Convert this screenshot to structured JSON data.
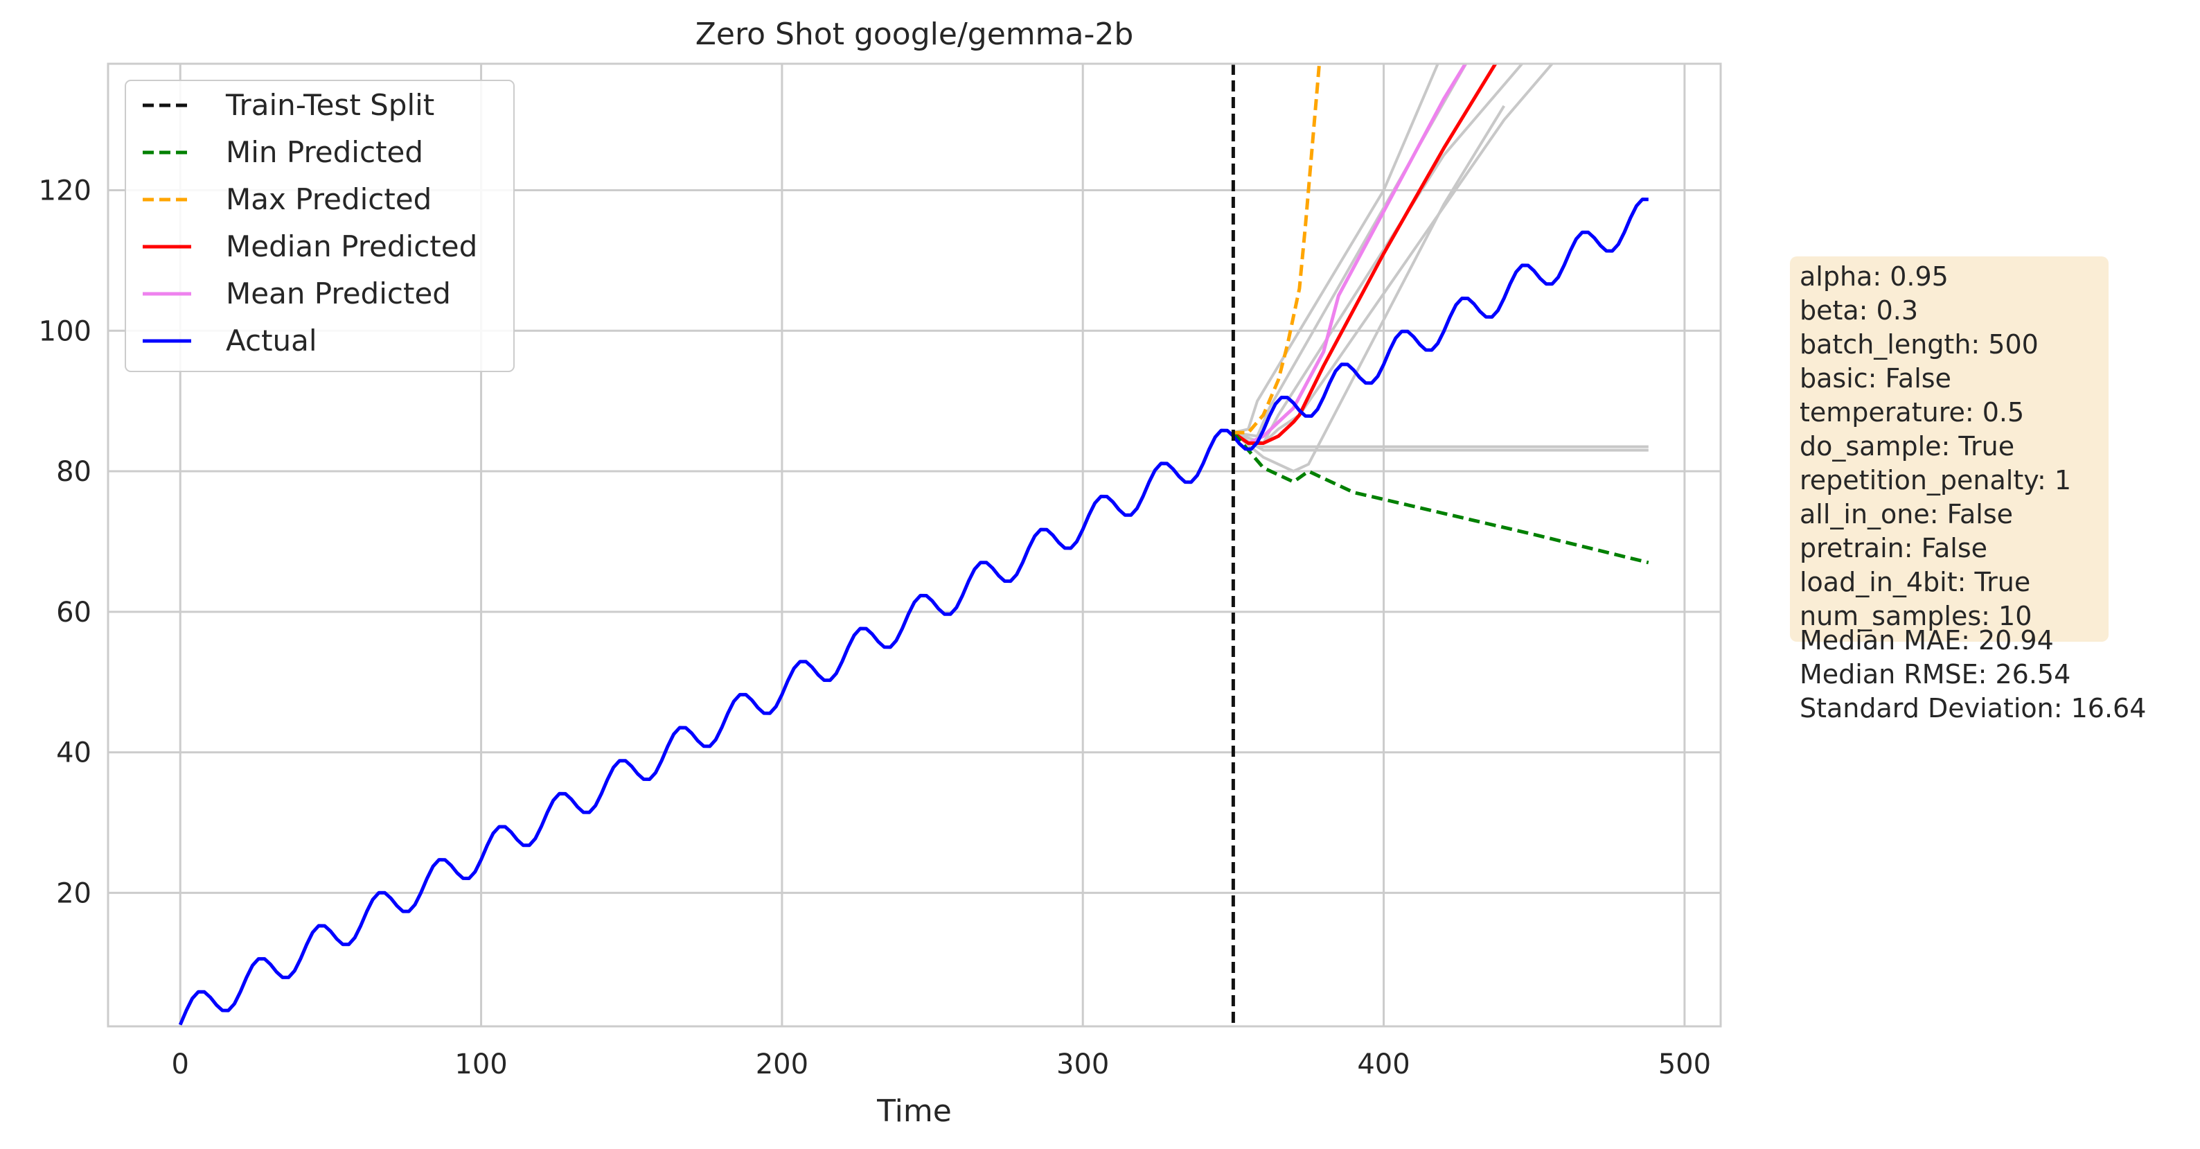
{
  "chart_data": {
    "type": "line",
    "title": "Zero Shot google/gemma-2b",
    "xlabel": "Time",
    "ylabel": "",
    "xlim": [
      -24,
      512
    ],
    "ylim": [
      1,
      138
    ],
    "xticks": [
      0,
      100,
      200,
      300,
      400,
      500
    ],
    "yticks": [
      20,
      40,
      60,
      80,
      100,
      120
    ],
    "grid": true,
    "legend_position": "top-left",
    "colors": {
      "split": "#111111",
      "min": "#008000",
      "max": "#ffa500",
      "median": "#ff0000",
      "mean": "#ee82ee",
      "actual": "#0000ff",
      "samples": "#c8c8c8",
      "grid": "#cccccc",
      "infobox": "#f5deb3"
    },
    "split_x": 350,
    "actual_model": {
      "x_start": 0,
      "x_end": 488,
      "step": 2,
      "intercept": 2,
      "slope": 0.235,
      "amplitude": 2.5,
      "period": 20,
      "phase_x": 1
    },
    "series": [
      {
        "name": "Min Predicted",
        "style": "dashed",
        "x": [
          350,
          355,
          360,
          365,
          370,
          375,
          380,
          390,
          400,
          450,
          488
        ],
        "y": [
          85.5,
          83,
          80.5,
          79.5,
          78.5,
          80,
          79,
          77,
          76,
          71,
          67
        ]
      },
      {
        "name": "Max Predicted",
        "style": "dashed",
        "x": [
          350,
          355,
          360,
          365,
          368,
          372,
          374,
          376,
          378,
          379
        ],
        "y": [
          85.5,
          85.5,
          88,
          93,
          98,
          106,
          115,
          125,
          135,
          140
        ]
      },
      {
        "name": "Median Predicted",
        "style": "solid",
        "x": [
          350,
          355,
          360,
          365,
          370,
          372,
          380,
          400,
          420,
          440
        ],
        "y": [
          85.5,
          84,
          84,
          85,
          87,
          88,
          95,
          111,
          126,
          140
        ]
      },
      {
        "name": "Mean Predicted",
        "style": "solid",
        "x": [
          350,
          355,
          360,
          365,
          370,
          380,
          385,
          400,
          420,
          430
        ],
        "y": [
          85.5,
          84,
          85,
          87,
          89,
          97,
          105,
          117,
          133,
          140
        ]
      }
    ],
    "samples": [
      {
        "x": [
          350,
          358,
          488
        ],
        "y": [
          85.5,
          83.5,
          83.5
        ]
      },
      {
        "x": [
          350,
          360,
          488
        ],
        "y": [
          85.5,
          83,
          83
        ]
      },
      {
        "x": [
          350,
          360,
          370,
          375,
          420,
          440
        ],
        "y": [
          85.5,
          82,
          80,
          81,
          118,
          132
        ]
      },
      {
        "x": [
          350,
          360,
          365,
          372,
          440,
          460
        ],
        "y": [
          85.5,
          84,
          86,
          88,
          130,
          140
        ]
      },
      {
        "x": [
          350,
          360,
          365,
          420,
          450
        ],
        "y": [
          85.5,
          84,
          88,
          125,
          140
        ]
      },
      {
        "x": [
          350,
          358,
          362,
          410,
          430
        ],
        "y": [
          85.5,
          85,
          89,
          125,
          140
        ]
      },
      {
        "x": [
          350,
          355,
          358,
          400,
          420
        ],
        "y": [
          85.5,
          86,
          90,
          120,
          140
        ]
      }
    ],
    "legend": [
      "Train-Test Split",
      "Min Predicted",
      "Max Predicted",
      "Median Predicted",
      "Mean Predicted",
      "Actual"
    ],
    "info_box_lines": [
      "alpha: 0.95",
      "beta: 0.3",
      "batch_length: 500",
      "basic: False",
      "temperature: 0.5",
      "do_sample: True",
      "repetition_penalty: 1",
      "all_in_one: False",
      "pretrain: False",
      "load_in_4bit: True",
      "num_samples: 10"
    ],
    "metric_lines": [
      "Median MAE: 20.94",
      "Median RMSE: 26.54",
      "Standard Deviation: 16.64"
    ]
  }
}
